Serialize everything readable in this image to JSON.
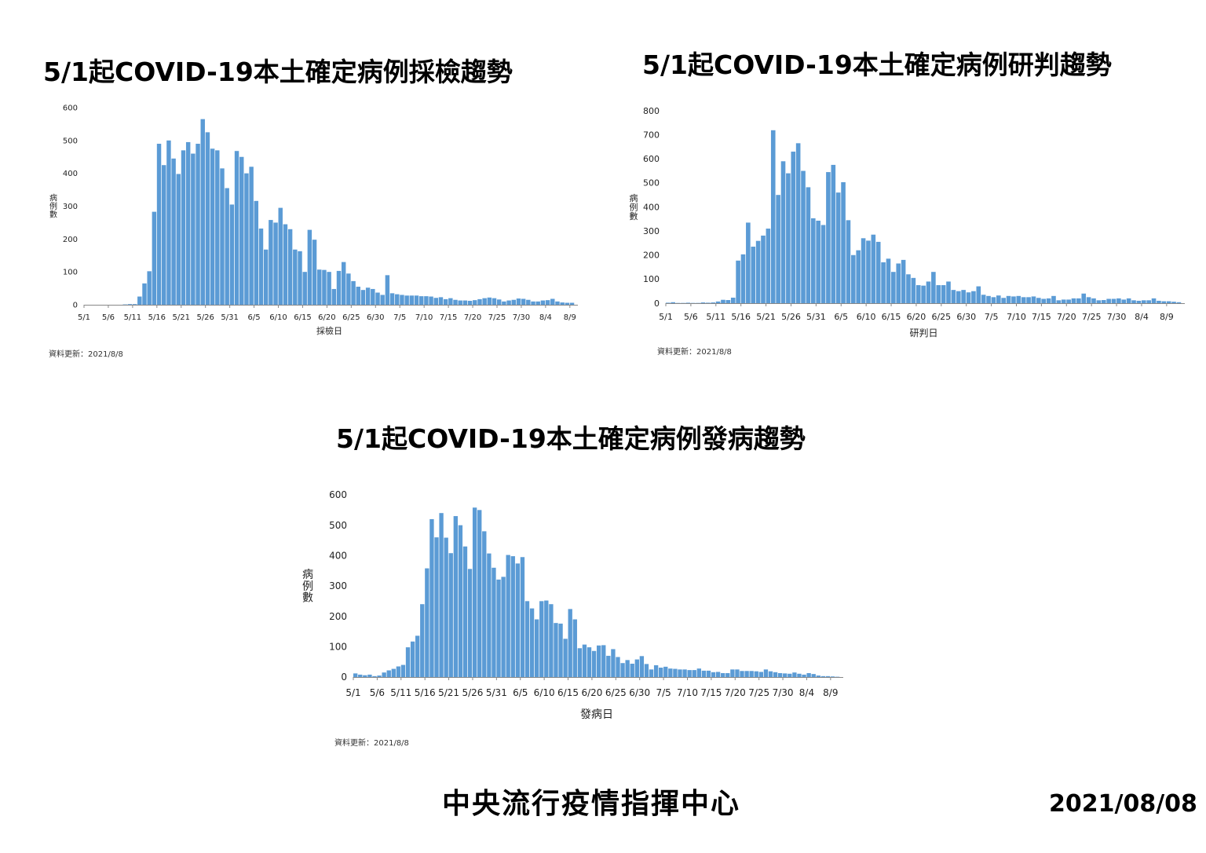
{
  "footer": {
    "org": "中央流行疫情指揮中心",
    "date": "2021/08/08"
  },
  "chart_data": [
    {
      "type": "bar",
      "title": "5/1起COVID-19本土確定病例採檢趨勢",
      "xlabel": "採檢日",
      "ylabel": "病例數",
      "ylim": [
        0,
        600
      ],
      "yticks": [
        0,
        100,
        200,
        300,
        400,
        500,
        600
      ],
      "grid": false,
      "color": "#5b9bd5",
      "note": "資料更新：2021/8/8",
      "tick_labels": [
        "5/1",
        "5/6",
        "5/11",
        "5/16",
        "5/21",
        "5/26",
        "5/31",
        "6/5",
        "6/10",
        "6/15",
        "6/20",
        "6/25",
        "6/30",
        "7/5",
        "7/10",
        "7/15",
        "7/20",
        "7/25",
        "7/30",
        "8/4",
        "8/9"
      ],
      "start_date": "5/1",
      "values": [
        0,
        0,
        0,
        0,
        0,
        0,
        0,
        0,
        1,
        2,
        2,
        25,
        65,
        102,
        283,
        490,
        425,
        500,
        445,
        398,
        470,
        495,
        460,
        490,
        565,
        525,
        475,
        470,
        415,
        355,
        305,
        468,
        450,
        400,
        420,
        316,
        232,
        168,
        258,
        250,
        295,
        245,
        230,
        168,
        163,
        100,
        228,
        198,
        107,
        106,
        100,
        48,
        103,
        130,
        95,
        72,
        55,
        45,
        52,
        48,
        37,
        30,
        90,
        35,
        32,
        30,
        28,
        28,
        28,
        26,
        26,
        25,
        21,
        23,
        17,
        20,
        15,
        13,
        13,
        12,
        14,
        17,
        20,
        22,
        20,
        16,
        10,
        13,
        15,
        19,
        18,
        15,
        10,
        10,
        13,
        14,
        18,
        10,
        7,
        6,
        6
      ]
    },
    {
      "type": "bar",
      "title": "5/1起COVID-19本土確定病例研判趨勢",
      "xlabel": "研判日",
      "ylabel": "病例數",
      "ylim": [
        0,
        800
      ],
      "yticks": [
        0,
        100,
        200,
        300,
        400,
        500,
        600,
        700,
        800
      ],
      "grid": false,
      "color": "#5b9bd5",
      "note": "資料更新：2021/8/8",
      "tick_labels": [
        "5/1",
        "5/6",
        "5/11",
        "5/16",
        "5/21",
        "5/26",
        "5/31",
        "6/5",
        "6/10",
        "6/15",
        "6/20",
        "6/25",
        "6/30",
        "7/5",
        "7/10",
        "7/15",
        "7/20",
        "7/25",
        "7/30",
        "8/4",
        "8/9"
      ],
      "start_date": "5/1",
      "values": [
        2,
        4,
        1,
        1,
        2,
        1,
        1,
        3,
        2,
        3,
        7,
        14,
        13,
        23,
        177,
        203,
        335,
        235,
        259,
        281,
        310,
        719,
        450,
        590,
        540,
        630,
        665,
        550,
        482,
        353,
        343,
        325,
        545,
        575,
        460,
        503,
        345,
        200,
        220,
        270,
        260,
        285,
        255,
        170,
        185,
        130,
        165,
        180,
        120,
        105,
        75,
        73,
        90,
        130,
        75,
        75,
        90,
        55,
        50,
        55,
        45,
        50,
        70,
        35,
        30,
        25,
        32,
        22,
        30,
        28,
        30,
        25,
        25,
        28,
        22,
        18,
        20,
        30,
        12,
        15,
        15,
        20,
        20,
        40,
        25,
        20,
        12,
        13,
        18,
        18,
        20,
        15,
        20,
        12,
        10,
        12,
        12,
        20,
        10,
        8,
        8,
        6,
        4
      ]
    },
    {
      "type": "bar",
      "title": "5/1起COVID-19本土確定病例發病趨勢",
      "xlabel": "發病日",
      "ylabel": "病例數",
      "ylim": [
        0,
        600
      ],
      "yticks": [
        0,
        100,
        200,
        300,
        400,
        500,
        600
      ],
      "grid": false,
      "color": "#5b9bd5",
      "note": "資料更新：2021/8/8",
      "tick_labels": [
        "5/1",
        "5/6",
        "5/11",
        "5/16",
        "5/21",
        "5/26",
        "5/31",
        "6/5",
        "6/10",
        "6/15",
        "6/20",
        "6/25",
        "6/30",
        "7/5",
        "7/10",
        "7/15",
        "7/20",
        "7/25",
        "7/30",
        "8/4",
        "8/9"
      ],
      "start_date": "5/1",
      "values": [
        12,
        8,
        6,
        8,
        3,
        5,
        15,
        22,
        27,
        35,
        40,
        98,
        117,
        136,
        240,
        358,
        520,
        460,
        540,
        459,
        408,
        530,
        500,
        430,
        356,
        558,
        550,
        480,
        407,
        360,
        321,
        330,
        402,
        398,
        374,
        395,
        250,
        226,
        190,
        250,
        252,
        240,
        178,
        176,
        126,
        224,
        190,
        95,
        107,
        98,
        86,
        104,
        105,
        70,
        92,
        66,
        46,
        56,
        44,
        58,
        69,
        43,
        25,
        39,
        31,
        34,
        28,
        27,
        25,
        25,
        23,
        23,
        28,
        21,
        21,
        16,
        17,
        13,
        13,
        25,
        25,
        20,
        20,
        20,
        19,
        17,
        25,
        19,
        16,
        13,
        12,
        11,
        15,
        11,
        8,
        13,
        10,
        5,
        3,
        3,
        2,
        1
      ]
    }
  ]
}
